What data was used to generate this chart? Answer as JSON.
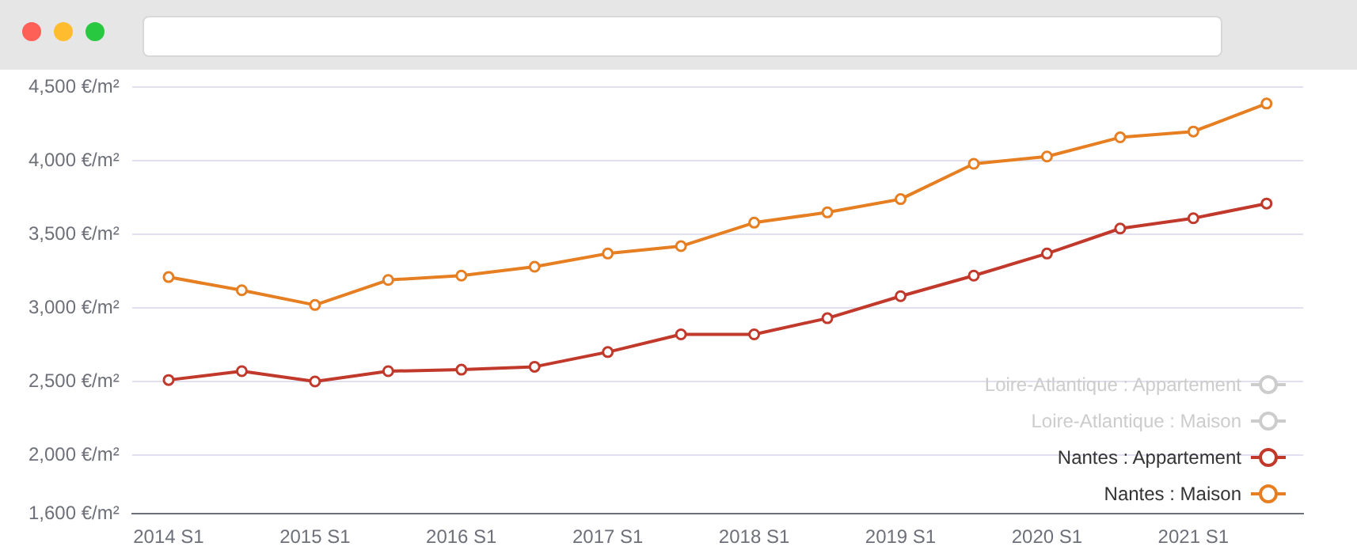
{
  "chart_data": {
    "type": "line",
    "categories": [
      "2014 S1",
      null,
      "2015 S1",
      null,
      "2016 S1",
      null,
      "2017 S1",
      null,
      "2018 S1",
      null,
      "2019 S1",
      null,
      "2020 S1",
      null,
      "2021 S1",
      null
    ],
    "series": [
      {
        "name": "Loire-Atlantique : Appartement",
        "color": "#cccccc",
        "values": [
          null,
          null,
          null,
          null,
          null,
          null,
          null,
          null,
          null,
          null,
          null,
          null,
          null,
          null,
          null,
          null
        ]
      },
      {
        "name": "Loire-Atlantique : Maison",
        "color": "#cccccc",
        "values": [
          null,
          null,
          null,
          null,
          null,
          null,
          null,
          null,
          null,
          null,
          null,
          null,
          null,
          null,
          null,
          null
        ]
      },
      {
        "name": "Nantes : Appartement",
        "color": "#c0392b",
        "values": [
          2510,
          2570,
          2500,
          2570,
          2580,
          2600,
          2700,
          2820,
          2820,
          2930,
          3080,
          3220,
          3370,
          3540,
          3610,
          3710
        ]
      },
      {
        "name": "Nantes : Maison",
        "color": "#e67e22",
        "values": [
          3210,
          3120,
          3020,
          3190,
          3220,
          3280,
          3370,
          3420,
          3580,
          3650,
          3740,
          3980,
          4030,
          4160,
          4200,
          4390
        ]
      }
    ],
    "ylim": [
      1600,
      4500
    ],
    "yticks": [
      {
        "value": 1600,
        "label": "1,600 €/m²"
      },
      {
        "value": 2000,
        "label": "2,000 €/m²"
      },
      {
        "value": 2500,
        "label": "2,500 €/m²"
      },
      {
        "value": 3000,
        "label": "3,000 €/m²"
      },
      {
        "value": 3500,
        "label": "3,500 €/m²"
      },
      {
        "value": 4000,
        "label": "4,000 €/m²"
      },
      {
        "value": 4500,
        "label": "4,500 €/m²"
      }
    ],
    "grid": "y",
    "legend": "bottom right",
    "marker": "circle",
    "line_style": "solid"
  }
}
